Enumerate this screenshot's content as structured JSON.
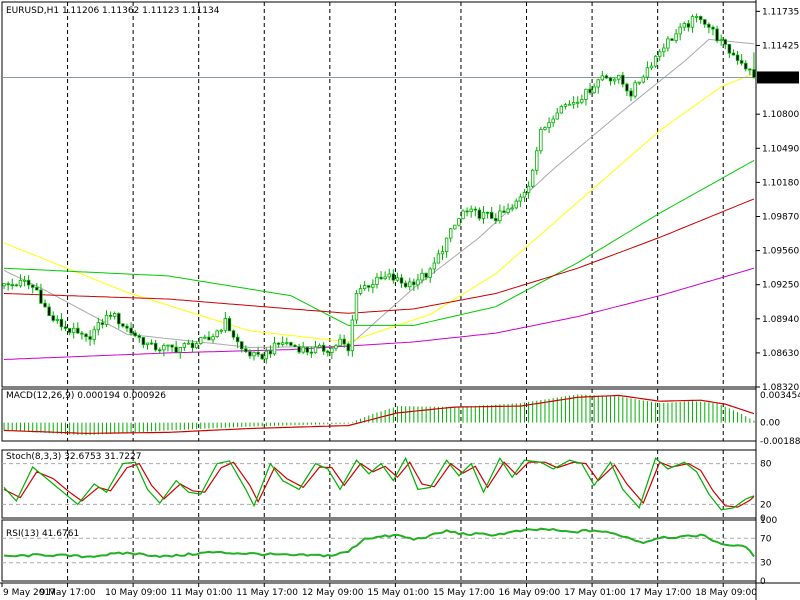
{
  "chart_data": [
    {
      "type": "candlestick",
      "title": "EURUSD,H1  1.11206 1.11362 1.11123 1.11134",
      "symbol": "EURUSD",
      "timeframe": "H1",
      "last_bar": {
        "open": 1.11206,
        "high": 1.11362,
        "low": 1.11123,
        "close": 1.11134
      },
      "current_price_label": "1.11134",
      "y_ticks": [
        "1.11735",
        "1.11425",
        "1.10800",
        "1.10490",
        "1.10180",
        "1.09870",
        "1.09560",
        "1.09250",
        "1.08940",
        "1.08630",
        "1.08320"
      ],
      "ylim": [
        1.0832,
        1.1182
      ],
      "x_ticks": [
        "9 May 2017",
        "9 May 17:00",
        "10 May 09:00",
        "11 May 01:00",
        "11 May 17:00",
        "12 May 09:00",
        "15 May 01:00",
        "15 May 17:00",
        "16 May 09:00",
        "17 May 01:00",
        "17 May 17:00",
        "18 May 09:00"
      ],
      "x_tick_indices": [
        0,
        16,
        32,
        48,
        64,
        80,
        96,
        112,
        128,
        144,
        160,
        176
      ],
      "bar_count": 184,
      "waypoints": [
        [
          0,
          1.0924
        ],
        [
          5,
          1.0927
        ],
        [
          8,
          1.092
        ],
        [
          11,
          1.0896
        ],
        [
          14,
          1.0888
        ],
        [
          20,
          1.0875
        ],
        [
          26,
          1.0899
        ],
        [
          30,
          1.0885
        ],
        [
          36,
          1.0868
        ],
        [
          42,
          1.0867
        ],
        [
          50,
          1.0875
        ],
        [
          54,
          1.0891
        ],
        [
          58,
          1.0866
        ],
        [
          62,
          1.0858
        ],
        [
          68,
          1.0873
        ],
        [
          74,
          1.0865
        ],
        [
          80,
          1.0867
        ],
        [
          82,
          1.0874
        ],
        [
          84,
          1.0864
        ],
        [
          86,
          1.092
        ],
        [
          90,
          1.0927
        ],
        [
          94,
          1.0932
        ],
        [
          98,
          1.0925
        ],
        [
          104,
          1.0936
        ],
        [
          108,
          1.0966
        ],
        [
          112,
          1.0991
        ],
        [
          116,
          1.0989
        ],
        [
          120,
          1.0986
        ],
        [
          124,
          1.0994
        ],
        [
          126,
          1.1004
        ],
        [
          128,
          1.1017
        ],
        [
          131,
          1.1063
        ],
        [
          135,
          1.1085
        ],
        [
          139,
          1.1092
        ],
        [
          142,
          1.1099
        ],
        [
          146,
          1.1115
        ],
        [
          150,
          1.1112
        ],
        [
          153,
          1.1099
        ],
        [
          157,
          1.1122
        ],
        [
          161,
          1.1143
        ],
        [
          165,
          1.1156
        ],
        [
          168,
          1.1165
        ],
        [
          170,
          1.1169
        ],
        [
          173,
          1.1155
        ],
        [
          176,
          1.114
        ],
        [
          180,
          1.1128
        ],
        [
          183,
          1.11134
        ]
      ],
      "moving_averages": [
        {
          "color": "#aaaaaa",
          "points": [
            [
              0,
              1.0938
            ],
            [
              10,
              1.092
            ],
            [
              30,
              1.088
            ],
            [
              60,
              1.0868
            ],
            [
              84,
              1.0869
            ],
            [
              100,
              1.0922
            ],
            [
              116,
              1.0968
            ],
            [
              134,
              1.103
            ],
            [
              150,
              1.108
            ],
            [
              166,
              1.1128
            ],
            [
              172,
              1.1148
            ],
            [
              183,
              1.1144
            ]
          ]
        },
        {
          "color": "#ffff00",
          "points": [
            [
              0,
              1.0963
            ],
            [
              30,
              1.0918
            ],
            [
              60,
              1.0883
            ],
            [
              84,
              1.0873
            ],
            [
              104,
              1.0898
            ],
            [
              120,
              1.0935
            ],
            [
              140,
              1.1
            ],
            [
              160,
              1.1065
            ],
            [
              175,
              1.1105
            ],
            [
              183,
              1.1117
            ]
          ]
        },
        {
          "color": "#00cc00",
          "points": [
            [
              0,
              1.094
            ],
            [
              40,
              1.0933
            ],
            [
              70,
              1.0915
            ],
            [
              84,
              1.0888
            ],
            [
              100,
              1.0888
            ],
            [
              120,
              1.0905
            ],
            [
              140,
              1.0945
            ],
            [
              160,
              1.099
            ],
            [
              183,
              1.1038
            ]
          ]
        },
        {
          "color": "#cc0000",
          "points": [
            [
              0,
              1.0917
            ],
            [
              40,
              1.0912
            ],
            [
              70,
              1.0903
            ],
            [
              84,
              1.0899
            ],
            [
              100,
              1.0903
            ],
            [
              120,
              1.0917
            ],
            [
              140,
              1.094
            ],
            [
              160,
              1.0968
            ],
            [
              183,
              1.1003
            ]
          ]
        },
        {
          "color": "#cc00cc",
          "points": [
            [
              0,
              1.0857
            ],
            [
              40,
              1.0863
            ],
            [
              70,
              1.0866
            ],
            [
              100,
              1.0873
            ],
            [
              120,
              1.0881
            ],
            [
              140,
              1.0896
            ],
            [
              160,
              1.0915
            ],
            [
              183,
              1.094
            ]
          ]
        }
      ]
    },
    {
      "type": "macd",
      "title": "MACD(12,26,9) 0.000194 0.000926",
      "y_ticks": [
        "0.003454",
        "0.00",
        "-0.001885"
      ],
      "ylim": [
        -0.001885,
        0.003454
      ],
      "hist_points": [
        [
          0,
          -0.0008
        ],
        [
          20,
          -0.0013
        ],
        [
          40,
          -0.0008
        ],
        [
          60,
          -0.0004
        ],
        [
          84,
          -0.0001
        ],
        [
          90,
          0.0009
        ],
        [
          96,
          0.0017
        ],
        [
          110,
          0.0016
        ],
        [
          126,
          0.002
        ],
        [
          140,
          0.0029
        ],
        [
          150,
          0.0027
        ],
        [
          160,
          0.002
        ],
        [
          168,
          0.0022
        ],
        [
          174,
          0.002
        ],
        [
          180,
          0.0009
        ],
        [
          183,
          0.000194
        ]
      ],
      "signal_points": [
        [
          0,
          -0.0008
        ],
        [
          20,
          -0.0011
        ],
        [
          40,
          -0.001
        ],
        [
          60,
          -0.0006
        ],
        [
          84,
          -0.0003
        ],
        [
          96,
          0.001
        ],
        [
          110,
          0.0016
        ],
        [
          126,
          0.0017
        ],
        [
          140,
          0.0026
        ],
        [
          150,
          0.0028
        ],
        [
          160,
          0.0022
        ],
        [
          170,
          0.0023
        ],
        [
          176,
          0.0019
        ],
        [
          183,
          0.000926
        ]
      ]
    },
    {
      "type": "stochastic",
      "title": "Stoch(8,3,3) 32.6753 31.7227",
      "y_ticks": [
        "80",
        "20",
        "0"
      ],
      "ylim": [
        0,
        100
      ],
      "main_points": [
        [
          0,
          45
        ],
        [
          3,
          25
        ],
        [
          7,
          75
        ],
        [
          11,
          55
        ],
        [
          15,
          35
        ],
        [
          18,
          20
        ],
        [
          22,
          50
        ],
        [
          25,
          38
        ],
        [
          29,
          80
        ],
        [
          32,
          82
        ],
        [
          35,
          42
        ],
        [
          38,
          22
        ],
        [
          42,
          55
        ],
        [
          45,
          38
        ],
        [
          48,
          35
        ],
        [
          52,
          80
        ],
        [
          55,
          84
        ],
        [
          59,
          42
        ],
        [
          61,
          18
        ],
        [
          65,
          80
        ],
        [
          68,
          55
        ],
        [
          72,
          42
        ],
        [
          76,
          80
        ],
        [
          79,
          72
        ],
        [
          82,
          42
        ],
        [
          86,
          85
        ],
        [
          89,
          65
        ],
        [
          92,
          80
        ],
        [
          95,
          55
        ],
        [
          98,
          88
        ],
        [
          101,
          42
        ],
        [
          104,
          45
        ],
        [
          108,
          85
        ],
        [
          111,
          62
        ],
        [
          114,
          80
        ],
        [
          117,
          38
        ],
        [
          121,
          88
        ],
        [
          124,
          60
        ],
        [
          127,
          85
        ],
        [
          131,
          82
        ],
        [
          134,
          72
        ],
        [
          138,
          85
        ],
        [
          141,
          80
        ],
        [
          144,
          48
        ],
        [
          148,
          82
        ],
        [
          151,
          42
        ],
        [
          155,
          15
        ],
        [
          159,
          88
        ],
        [
          162,
          72
        ],
        [
          166,
          82
        ],
        [
          169,
          68
        ],
        [
          172,
          35
        ],
        [
          175,
          12
        ],
        [
          178,
          15
        ],
        [
          181,
          28
        ],
        [
          183,
          32.6753
        ]
      ],
      "signal_points": [
        [
          0,
          42
        ],
        [
          4,
          30
        ],
        [
          8,
          68
        ],
        [
          12,
          58
        ],
        [
          16,
          38
        ],
        [
          19,
          25
        ],
        [
          23,
          45
        ],
        [
          26,
          40
        ],
        [
          30,
          74
        ],
        [
          33,
          80
        ],
        [
          36,
          48
        ],
        [
          39,
          28
        ],
        [
          43,
          50
        ],
        [
          46,
          40
        ],
        [
          49,
          38
        ],
        [
          53,
          74
        ],
        [
          56,
          82
        ],
        [
          60,
          48
        ],
        [
          62,
          24
        ],
        [
          66,
          74
        ],
        [
          69,
          58
        ],
        [
          73,
          45
        ],
        [
          77,
          75
        ],
        [
          80,
          74
        ],
        [
          83,
          48
        ],
        [
          87,
          80
        ],
        [
          90,
          68
        ],
        [
          93,
          76
        ],
        [
          96,
          60
        ],
        [
          99,
          82
        ],
        [
          102,
          50
        ],
        [
          105,
          46
        ],
        [
          109,
          80
        ],
        [
          112,
          66
        ],
        [
          115,
          76
        ],
        [
          118,
          45
        ],
        [
          122,
          82
        ],
        [
          125,
          64
        ],
        [
          128,
          82
        ],
        [
          132,
          82
        ],
        [
          135,
          74
        ],
        [
          139,
          82
        ],
        [
          142,
          80
        ],
        [
          145,
          55
        ],
        [
          149,
          78
        ],
        [
          152,
          50
        ],
        [
          156,
          22
        ],
        [
          160,
          82
        ],
        [
          163,
          75
        ],
        [
          167,
          80
        ],
        [
          170,
          70
        ],
        [
          173,
          40
        ],
        [
          176,
          18
        ],
        [
          179,
          16
        ],
        [
          182,
          26
        ],
        [
          183,
          31.7227
        ]
      ]
    },
    {
      "type": "rsi",
      "title": "RSI(13) 41.6761",
      "y_ticks": [
        "100",
        "70",
        "30",
        "0"
      ],
      "ylim": [
        0,
        100
      ],
      "points": [
        [
          0,
          40
        ],
        [
          10,
          43
        ],
        [
          20,
          40
        ],
        [
          30,
          46
        ],
        [
          40,
          40
        ],
        [
          50,
          47
        ],
        [
          60,
          45
        ],
        [
          70,
          42
        ],
        [
          80,
          42
        ],
        [
          84,
          48
        ],
        [
          88,
          70
        ],
        [
          96,
          75
        ],
        [
          100,
          68
        ],
        [
          104,
          74
        ],
        [
          108,
          82
        ],
        [
          112,
          77
        ],
        [
          120,
          76
        ],
        [
          126,
          82
        ],
        [
          132,
          85
        ],
        [
          138,
          80
        ],
        [
          144,
          83
        ],
        [
          150,
          76
        ],
        [
          156,
          63
        ],
        [
          160,
          72
        ],
        [
          166,
          72
        ],
        [
          170,
          76
        ],
        [
          174,
          64
        ],
        [
          178,
          56
        ],
        [
          180,
          60
        ],
        [
          183,
          41.6761
        ]
      ]
    }
  ]
}
